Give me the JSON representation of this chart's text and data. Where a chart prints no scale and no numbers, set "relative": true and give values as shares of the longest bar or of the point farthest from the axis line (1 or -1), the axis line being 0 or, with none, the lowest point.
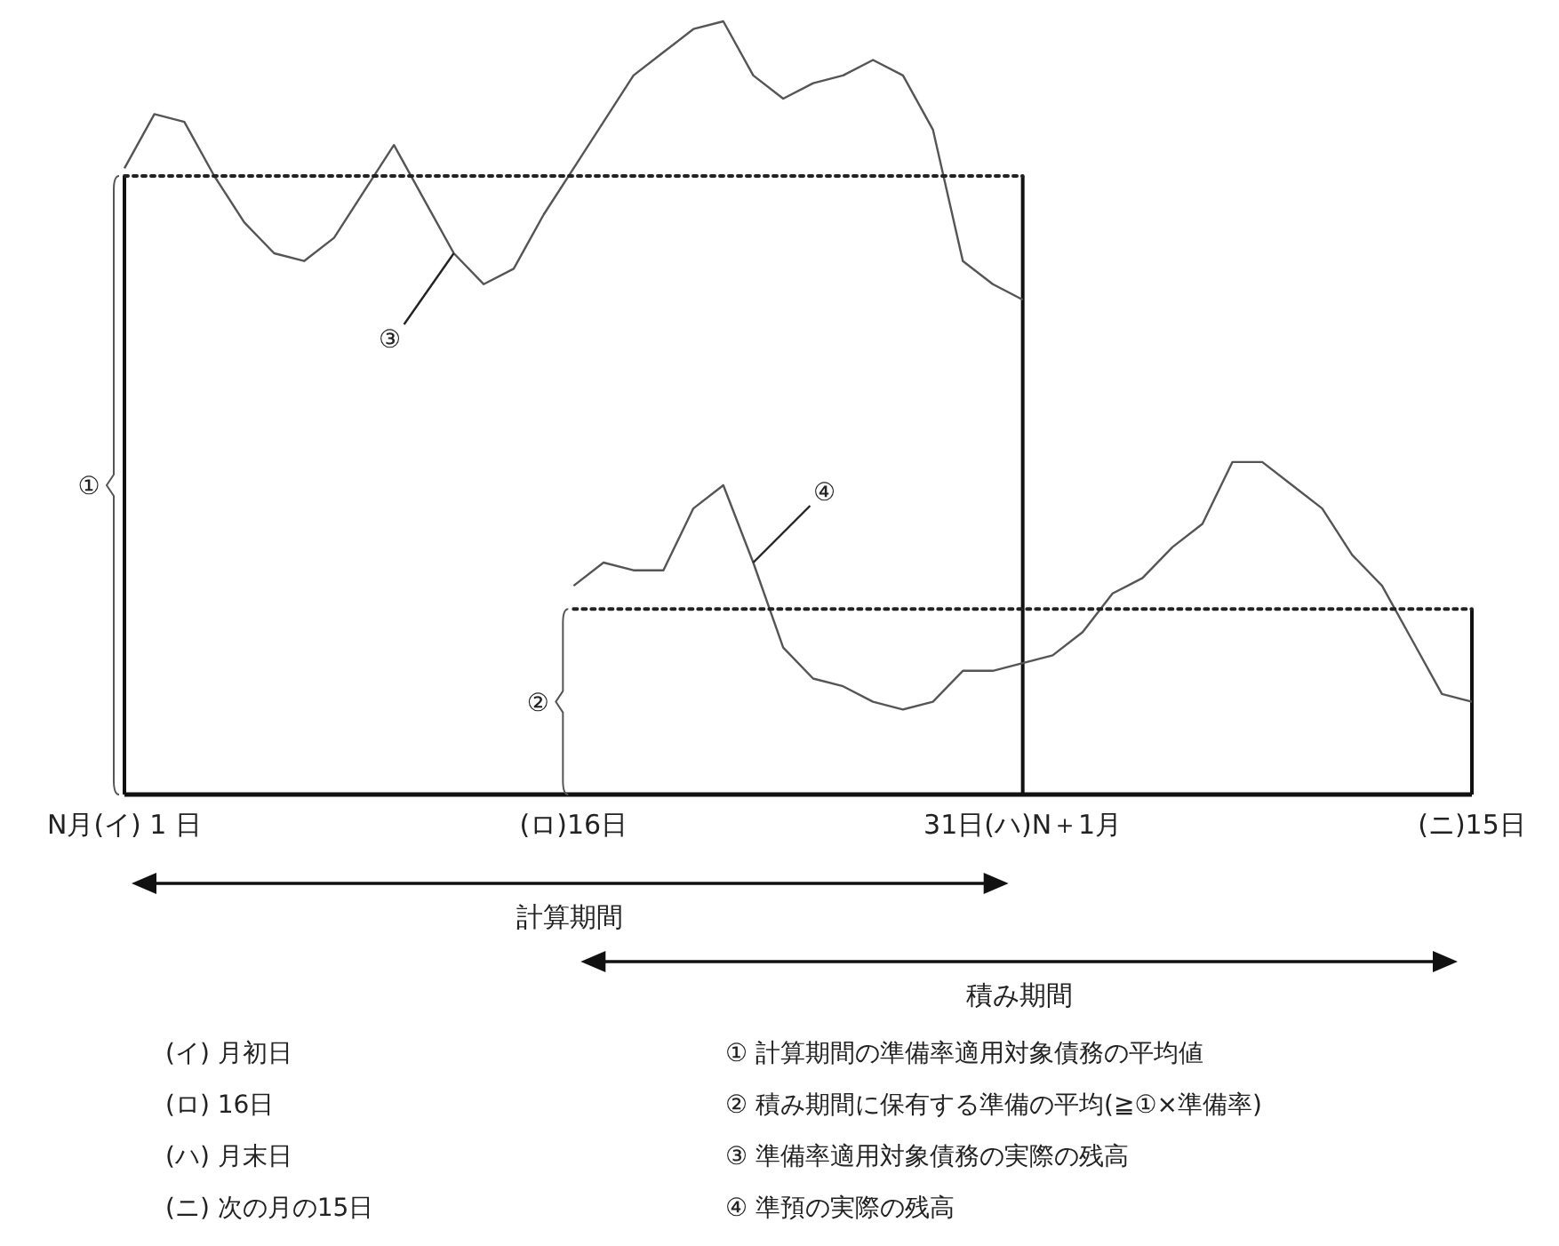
{
  "chart_data": {
    "type": "line",
    "relative": true,
    "categories": [
      "N月(イ) 1 日",
      null,
      null,
      null,
      null,
      null,
      null,
      null,
      null,
      null,
      null,
      null,
      null,
      null,
      null,
      "(ロ)16日",
      null,
      null,
      null,
      null,
      null,
      null,
      null,
      null,
      null,
      null,
      null,
      null,
      null,
      null,
      "31日(ハ)N＋1月",
      null,
      null,
      null,
      null,
      null,
      null,
      null,
      null,
      null,
      null,
      null,
      null,
      null,
      null,
      "(ニ)15日"
    ],
    "marker": "none",
    "series": [
      {
        "color": "#555555",
        "line_style": "solid",
        "values": [
          0.81,
          0.88,
          0.87,
          0.8,
          0.74,
          0.7,
          0.69,
          0.72,
          0.78,
          0.84,
          0.77,
          0.7,
          0.66,
          0.68,
          0.75,
          0.81,
          0.87,
          0.93,
          0.96,
          0.99,
          1.0,
          0.93,
          0.9,
          0.92,
          0.93,
          0.95,
          0.93,
          0.86,
          0.69,
          0.66,
          0.64,
          null,
          null,
          null,
          null,
          null,
          null,
          null,
          null,
          null,
          null,
          null,
          null,
          null,
          null,
          null
        ]
      },
      {
        "color": "#555555",
        "line_style": "solid",
        "values": [
          null,
          null,
          null,
          null,
          null,
          null,
          null,
          null,
          null,
          null,
          null,
          null,
          null,
          null,
          null,
          0.27,
          0.3,
          0.29,
          0.29,
          0.37,
          0.4,
          0.3,
          0.19,
          0.15,
          0.14,
          0.12,
          0.11,
          0.12,
          0.16,
          0.16,
          0.17,
          0.18,
          0.21,
          0.26,
          0.28,
          0.32,
          0.35,
          0.43,
          0.43,
          0.4,
          0.37,
          0.31,
          0.27,
          0.2,
          0.13,
          0.12
        ]
      },
      {
        "color": "#222222",
        "line_style": "dotted",
        "values": [
          0.8,
          0.8,
          0.8,
          0.8,
          0.8,
          0.8,
          0.8,
          0.8,
          0.8,
          0.8,
          0.8,
          0.8,
          0.8,
          0.8,
          0.8,
          0.8,
          0.8,
          0.8,
          0.8,
          0.8,
          0.8,
          0.8,
          0.8,
          0.8,
          0.8,
          0.8,
          0.8,
          0.8,
          0.8,
          0.8,
          0.8,
          null,
          null,
          null,
          null,
          null,
          null,
          null,
          null,
          null,
          null,
          null,
          null,
          null,
          null,
          null
        ]
      },
      {
        "color": "#222222",
        "line_style": "dotted",
        "values": [
          null,
          null,
          null,
          null,
          null,
          null,
          null,
          null,
          null,
          null,
          null,
          null,
          null,
          null,
          null,
          0.24,
          0.24,
          0.24,
          0.24,
          0.24,
          0.24,
          0.24,
          0.24,
          0.24,
          0.24,
          0.24,
          0.24,
          0.24,
          0.24,
          0.24,
          0.24,
          0.24,
          0.24,
          0.24,
          0.24,
          0.24,
          0.24,
          0.24,
          0.24,
          0.24,
          0.24,
          0.24,
          0.24,
          0.24,
          0.24,
          0.24
        ]
      }
    ],
    "annotations": [
      "①",
      "②",
      "③",
      "④",
      "計算期間",
      "積み期間",
      "(イ) 月初日",
      "(ロ) 16日",
      "(ハ) 月末日",
      "(ニ) 次の月の15日",
      "① 計算期間の準備率適用対象債務の平均値",
      "② 積み期間に保有する準備の平均(≧①×準備率)",
      "③ 準備率適用対象債務の実際の残高",
      "④ 準預の実際の残高"
    ]
  }
}
